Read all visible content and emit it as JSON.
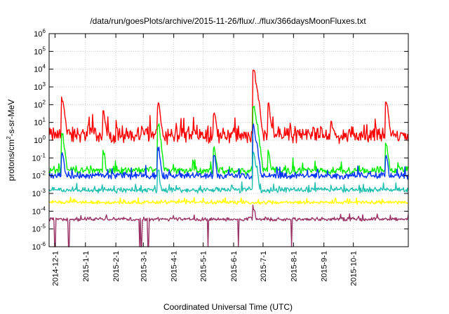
{
  "chart_data": {
    "type": "line",
    "title": "/data/run/goesPlots/archive/2015-11-26/flux/../flux/366daysMoonFluxes.txt",
    "xlabel": "Coordinated Universal Time (UTC)",
    "ylabel_parts": [
      "protons/cm",
      "2",
      "-s-sr-MeV"
    ],
    "y_scale": "log",
    "ylim": [
      1e-06,
      1000000.0
    ],
    "y_ticks": [
      {
        "base": "10",
        "exp": "-6"
      },
      {
        "base": "10",
        "exp": "-5"
      },
      {
        "base": "10",
        "exp": "-4"
      },
      {
        "base": "10",
        "exp": "-3"
      },
      {
        "base": "10",
        "exp": "-2"
      },
      {
        "base": "10",
        "exp": "-1"
      },
      {
        "base": "10",
        "exp": "0"
      },
      {
        "base": "10",
        "exp": "1"
      },
      {
        "base": "10",
        "exp": "2"
      },
      {
        "base": "10",
        "exp": "3"
      },
      {
        "base": "10",
        "exp": "4"
      },
      {
        "base": "10",
        "exp": "5"
      },
      {
        "base": "10",
        "exp": "6"
      }
    ],
    "xlim": [
      "2014-11-25",
      "2015-11-26"
    ],
    "x_ticks": [
      "2014-12-1",
      "2015-1-1",
      "2015-2-1",
      "2015-3-1",
      "2015-4-1",
      "2015-5-1",
      "2015-6-1",
      "2015-7-1",
      "2015-8-1",
      "2015-9-1",
      "2015-10-1"
    ],
    "grid": true,
    "legend": "none",
    "series": [
      {
        "color": "#ff0000",
        "baseline_log10": 0.3,
        "noise": 0.55,
        "peaks": [
          [
            "2014-12-09",
            2.3
          ],
          [
            "2015-01-20",
            1.6
          ],
          [
            "2015-03-17",
            2.0
          ],
          [
            "2015-05-13",
            1.4
          ],
          [
            "2015-06-22",
            4.0
          ],
          [
            "2015-06-25",
            3.0
          ],
          [
            "2015-07-07",
            2.0
          ],
          [
            "2015-11-04",
            2.2
          ]
        ]
      },
      {
        "color": "#00ee00",
        "baseline_log10": -1.7,
        "noise": 0.25,
        "peaks": [
          [
            "2014-12-09",
            0.3
          ],
          [
            "2015-01-20",
            -0.7
          ],
          [
            "2015-03-17",
            0.8
          ],
          [
            "2015-05-13",
            -0.5
          ],
          [
            "2015-06-22",
            2.0
          ],
          [
            "2015-06-25",
            1.0
          ],
          [
            "2015-07-07",
            -0.6
          ],
          [
            "2015-11-04",
            -0.2
          ]
        ]
      },
      {
        "color": "#0033ff",
        "baseline_log10": -2.0,
        "noise": 0.22,
        "peaks": [
          [
            "2014-12-09",
            -0.7
          ],
          [
            "2015-03-17",
            -0.5
          ],
          [
            "2015-05-13",
            -1.0
          ],
          [
            "2015-06-22",
            0.8
          ],
          [
            "2015-06-25",
            -0.2
          ],
          [
            "2015-11-04",
            -0.9
          ]
        ]
      },
      {
        "color": "#1fbfb0",
        "baseline_log10": -2.8,
        "noise": 0.18,
        "peaks": [
          [
            "2015-03-17",
            -1.8
          ],
          [
            "2015-06-22",
            -0.8
          ],
          [
            "2015-06-25",
            -1.5
          ]
        ]
      },
      {
        "color": "#ffff00",
        "baseline_log10": -3.5,
        "noise": 0.12,
        "peaks": []
      },
      {
        "color": "#993366",
        "baseline_log10": -4.45,
        "noise": 0.12,
        "peaks": [
          [
            "2015-06-22",
            -3.8
          ]
        ],
        "dropouts": [
          "2014-12-01",
          "2014-12-15",
          "2015-02-25",
          "2015-02-27",
          "2015-03-06",
          "2015-05-06",
          "2015-06-06",
          "2015-07-30"
        ]
      }
    ]
  }
}
